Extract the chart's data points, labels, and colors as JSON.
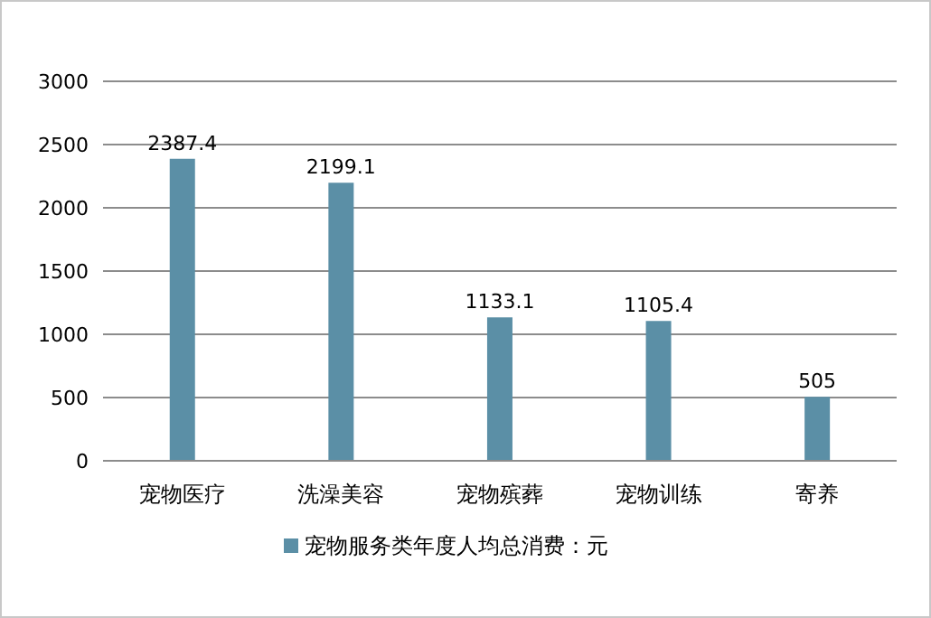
{
  "chart_data": {
    "type": "bar",
    "categories": [
      "宠物医疗",
      "洗澡美容",
      "宠物殡葬",
      "宠物训练",
      "寄养"
    ],
    "series": [
      {
        "name": "宠物服务类年度人均总消费：元",
        "color": "#5b8fa6",
        "values": [
          2387.4,
          2199.1,
          1133.1,
          1105.4,
          505
        ]
      }
    ],
    "ylim": [
      0,
      3000
    ],
    "yticks": [
      0,
      500,
      1000,
      1500,
      2000,
      2500,
      3000
    ],
    "grid": "y",
    "legend": "bottom",
    "data_labels": true
  }
}
